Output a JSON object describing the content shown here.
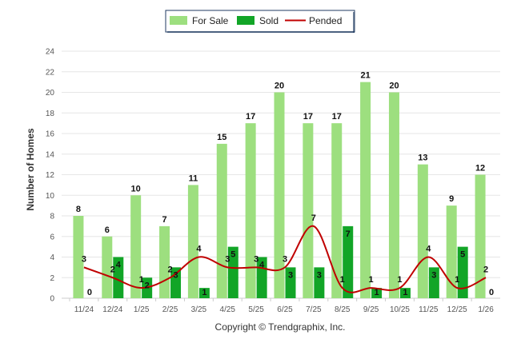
{
  "chart_data": {
    "type": "bar",
    "categories": [
      "11/24",
      "12/24",
      "1/25",
      "2/25",
      "3/25",
      "4/25",
      "5/25",
      "6/25",
      "7/25",
      "8/25",
      "9/25",
      "10/25",
      "11/25",
      "12/25",
      "1/26"
    ],
    "series": [
      {
        "name": "For Sale",
        "type": "bar",
        "color": "#9ddf7f",
        "values": [
          8,
          6,
          10,
          7,
          11,
          15,
          17,
          20,
          17,
          17,
          21,
          20,
          13,
          9,
          12
        ]
      },
      {
        "name": "Sold",
        "type": "bar",
        "color": "#12a527",
        "values": [
          0,
          4,
          2,
          3,
          1,
          5,
          4,
          3,
          3,
          7,
          1,
          1,
          3,
          5,
          0
        ]
      },
      {
        "name": "Pended",
        "type": "line",
        "color": "#c00000",
        "values": [
          3,
          2,
          1,
          2,
          4,
          3,
          3,
          3,
          7,
          1,
          1,
          1,
          4,
          1,
          2
        ]
      }
    ],
    "ylabel": "Number of Homes",
    "ylim": [
      0,
      24
    ],
    "yticks": [
      0,
      2,
      4,
      6,
      8,
      10,
      12,
      14,
      16,
      18,
      20,
      22,
      24
    ],
    "grid": true,
    "legend_position": "top-center"
  },
  "footer": {
    "copyright": "Copyright © Trendgraphix, Inc."
  }
}
